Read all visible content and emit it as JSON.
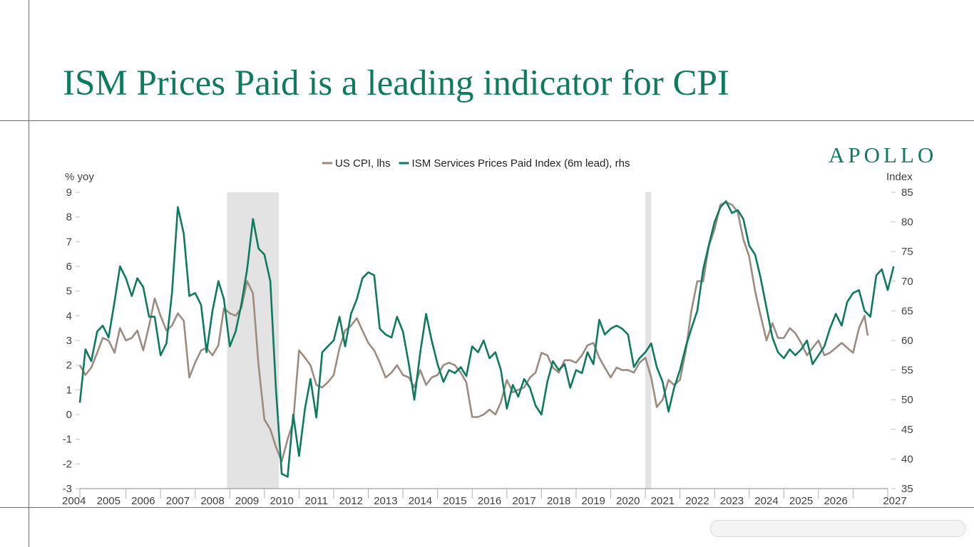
{
  "page": {
    "title": "ISM Prices Paid is a leading indicator for CPI",
    "brand": "APOLLO"
  },
  "colors": {
    "cpi": "#9c8c80",
    "ism": "#0e7a5f",
    "recession": "#e2e3e2",
    "title": "#0e7a5f"
  },
  "chart_data": {
    "type": "line",
    "title": "",
    "legend_position": "top-center",
    "xlim": [
      2003.67,
      2027
    ],
    "x_ticks": [
      "2004",
      "2005",
      "2006",
      "2007",
      "2008",
      "2009",
      "2010",
      "2011",
      "2012",
      "2013",
      "2014",
      "2015",
      "2016",
      "2017",
      "2018",
      "2019",
      "2020",
      "2021",
      "2022",
      "2023",
      "2024",
      "2025",
      "2026",
      "2027"
    ],
    "y_left": {
      "label": "% yoy",
      "lim": [
        -3,
        9
      ],
      "ticks": [
        "9",
        "8",
        "7",
        "6",
        "5",
        "4",
        "3",
        "2",
        "1",
        "0",
        "-1",
        "-2",
        "-3"
      ]
    },
    "y_right": {
      "label": "Index",
      "lim": [
        35,
        85
      ],
      "ticks": [
        "85",
        "80",
        "75",
        "70",
        "65",
        "60",
        "55",
        "50",
        "45",
        "40",
        "35"
      ]
    },
    "recessions": [
      [
        2007.92,
        2009.42
      ],
      [
        2020.0,
        2020.17
      ]
    ],
    "series": [
      {
        "name": "US CPI, lhs",
        "axis": "left",
        "points": [
          [
            2003.67,
            2.0
          ],
          [
            2003.83,
            1.6
          ],
          [
            2004.0,
            1.9
          ],
          [
            2004.17,
            2.5
          ],
          [
            2004.33,
            3.1
          ],
          [
            2004.5,
            3.0
          ],
          [
            2004.67,
            2.5
          ],
          [
            2004.83,
            3.5
          ],
          [
            2005.0,
            3.0
          ],
          [
            2005.17,
            3.1
          ],
          [
            2005.33,
            3.4
          ],
          [
            2005.5,
            2.6
          ],
          [
            2005.67,
            3.6
          ],
          [
            2005.83,
            4.7
          ],
          [
            2006.0,
            4.0
          ],
          [
            2006.17,
            3.4
          ],
          [
            2006.33,
            3.6
          ],
          [
            2006.5,
            4.1
          ],
          [
            2006.67,
            3.8
          ],
          [
            2006.83,
            1.5
          ],
          [
            2007.0,
            2.1
          ],
          [
            2007.17,
            2.6
          ],
          [
            2007.33,
            2.7
          ],
          [
            2007.5,
            2.4
          ],
          [
            2007.67,
            2.8
          ],
          [
            2007.83,
            4.3
          ],
          [
            2008.0,
            4.1
          ],
          [
            2008.17,
            4.0
          ],
          [
            2008.33,
            4.3
          ],
          [
            2008.5,
            5.4
          ],
          [
            2008.67,
            4.9
          ],
          [
            2008.83,
            2.0
          ],
          [
            2009.0,
            -0.2
          ],
          [
            2009.17,
            -0.6
          ],
          [
            2009.33,
            -1.3
          ],
          [
            2009.5,
            -1.9
          ],
          [
            2009.67,
            -1.0
          ],
          [
            2009.83,
            -0.3
          ],
          [
            2010.0,
            2.6
          ],
          [
            2010.17,
            2.3
          ],
          [
            2010.33,
            2.0
          ],
          [
            2010.5,
            1.2
          ],
          [
            2010.67,
            1.1
          ],
          [
            2010.83,
            1.3
          ],
          [
            2011.0,
            1.6
          ],
          [
            2011.17,
            2.7
          ],
          [
            2011.33,
            3.4
          ],
          [
            2011.5,
            3.6
          ],
          [
            2011.67,
            3.9
          ],
          [
            2011.83,
            3.4
          ],
          [
            2012.0,
            2.9
          ],
          [
            2012.17,
            2.6
          ],
          [
            2012.33,
            2.1
          ],
          [
            2012.5,
            1.5
          ],
          [
            2012.67,
            1.7
          ],
          [
            2012.83,
            2.0
          ],
          [
            2013.0,
            1.6
          ],
          [
            2013.17,
            1.5
          ],
          [
            2013.33,
            1.1
          ],
          [
            2013.5,
            1.8
          ],
          [
            2013.67,
            1.2
          ],
          [
            2013.83,
            1.5
          ],
          [
            2014.0,
            1.6
          ],
          [
            2014.17,
            2.0
          ],
          [
            2014.33,
            2.1
          ],
          [
            2014.5,
            2.0
          ],
          [
            2014.67,
            1.7
          ],
          [
            2014.83,
            1.3
          ],
          [
            2015.0,
            -0.1
          ],
          [
            2015.17,
            -0.1
          ],
          [
            2015.33,
            0.0
          ],
          [
            2015.5,
            0.2
          ],
          [
            2015.67,
            0.0
          ],
          [
            2015.83,
            0.5
          ],
          [
            2016.0,
            1.4
          ],
          [
            2016.17,
            0.9
          ],
          [
            2016.33,
            1.0
          ],
          [
            2016.5,
            1.1
          ],
          [
            2016.67,
            1.5
          ],
          [
            2016.83,
            1.7
          ],
          [
            2017.0,
            2.5
          ],
          [
            2017.17,
            2.4
          ],
          [
            2017.33,
            1.9
          ],
          [
            2017.5,
            1.7
          ],
          [
            2017.67,
            2.2
          ],
          [
            2017.83,
            2.2
          ],
          [
            2018.0,
            2.1
          ],
          [
            2018.17,
            2.4
          ],
          [
            2018.33,
            2.8
          ],
          [
            2018.5,
            2.9
          ],
          [
            2018.67,
            2.3
          ],
          [
            2018.83,
            1.9
          ],
          [
            2019.0,
            1.5
          ],
          [
            2019.17,
            1.9
          ],
          [
            2019.33,
            1.8
          ],
          [
            2019.5,
            1.8
          ],
          [
            2019.67,
            1.7
          ],
          [
            2019.83,
            2.1
          ],
          [
            2020.0,
            2.3
          ],
          [
            2020.17,
            1.5
          ],
          [
            2020.33,
            0.3
          ],
          [
            2020.5,
            0.6
          ],
          [
            2020.67,
            1.4
          ],
          [
            2020.83,
            1.2
          ],
          [
            2021.0,
            1.4
          ],
          [
            2021.17,
            2.6
          ],
          [
            2021.33,
            4.2
          ],
          [
            2021.5,
            5.4
          ],
          [
            2021.67,
            5.4
          ],
          [
            2021.83,
            6.8
          ],
          [
            2022.0,
            7.5
          ],
          [
            2022.17,
            8.5
          ],
          [
            2022.33,
            8.6
          ],
          [
            2022.5,
            8.5
          ],
          [
            2022.67,
            8.2
          ],
          [
            2022.83,
            7.1
          ],
          [
            2023.0,
            6.4
          ],
          [
            2023.17,
            5.0
          ],
          [
            2023.33,
            4.0
          ],
          [
            2023.5,
            3.0
          ],
          [
            2023.67,
            3.7
          ],
          [
            2023.83,
            3.1
          ],
          [
            2024.0,
            3.1
          ],
          [
            2024.17,
            3.5
          ],
          [
            2024.33,
            3.3
          ],
          [
            2024.5,
            2.9
          ],
          [
            2024.67,
            2.4
          ],
          [
            2024.83,
            2.7
          ],
          [
            2025.0,
            3.0
          ],
          [
            2025.17,
            2.4
          ],
          [
            2025.33,
            2.5
          ],
          [
            2025.5,
            2.7
          ],
          [
            2025.67,
            2.9
          ],
          [
            2025.83,
            2.7
          ],
          [
            2026.0,
            2.5
          ],
          [
            2026.17,
            3.5
          ],
          [
            2026.33,
            4.0
          ],
          [
            2026.42,
            3.2
          ]
        ]
      },
      {
        "name": "ISM Services Prices Paid Index (6m lead), rhs",
        "axis": "right",
        "points": [
          [
            2003.67,
            49.5
          ],
          [
            2003.83,
            58.5
          ],
          [
            2004.0,
            56.5
          ],
          [
            2004.17,
            61.5
          ],
          [
            2004.33,
            62.5
          ],
          [
            2004.5,
            60.5
          ],
          [
            2004.67,
            66.5
          ],
          [
            2004.83,
            72.5
          ],
          [
            2005.0,
            70.5
          ],
          [
            2005.17,
            67.5
          ],
          [
            2005.33,
            70.5
          ],
          [
            2005.5,
            69.0
          ],
          [
            2005.67,
            64.0
          ],
          [
            2005.83,
            64.0
          ],
          [
            2006.0,
            57.5
          ],
          [
            2006.17,
            59.5
          ],
          [
            2006.33,
            68.0
          ],
          [
            2006.5,
            82.5
          ],
          [
            2006.67,
            78.0
          ],
          [
            2006.83,
            67.5
          ],
          [
            2007.0,
            68.0
          ],
          [
            2007.17,
            66.0
          ],
          [
            2007.33,
            58.0
          ],
          [
            2007.5,
            65.0
          ],
          [
            2007.67,
            70.0
          ],
          [
            2007.83,
            67.0
          ],
          [
            2008.0,
            59.0
          ],
          [
            2008.17,
            61.5
          ],
          [
            2008.33,
            66.0
          ],
          [
            2008.5,
            72.0
          ],
          [
            2008.67,
            80.5
          ],
          [
            2008.83,
            75.5
          ],
          [
            2009.0,
            74.5
          ],
          [
            2009.17,
            70.0
          ],
          [
            2009.33,
            52.0
          ],
          [
            2009.5,
            37.5
          ],
          [
            2009.67,
            37.0
          ],
          [
            2009.83,
            47.5
          ],
          [
            2010.0,
            40.5
          ],
          [
            2010.17,
            48.5
          ],
          [
            2010.33,
            53.5
          ],
          [
            2010.5,
            47.0
          ],
          [
            2010.67,
            58.0
          ],
          [
            2010.83,
            59.0
          ],
          [
            2011.0,
            60.0
          ],
          [
            2011.17,
            64.0
          ],
          [
            2011.33,
            59.0
          ],
          [
            2011.5,
            64.5
          ],
          [
            2011.67,
            67.0
          ],
          [
            2011.83,
            70.5
          ],
          [
            2012.0,
            71.5
          ],
          [
            2012.17,
            71.0
          ],
          [
            2012.33,
            62.0
          ],
          [
            2012.5,
            61.0
          ],
          [
            2012.67,
            60.5
          ],
          [
            2012.83,
            64.0
          ],
          [
            2013.0,
            61.5
          ],
          [
            2013.17,
            56.0
          ],
          [
            2013.33,
            50.0
          ],
          [
            2013.5,
            58.0
          ],
          [
            2013.67,
            64.5
          ],
          [
            2013.83,
            60.0
          ],
          [
            2014.0,
            56.0
          ],
          [
            2014.17,
            53.0
          ],
          [
            2014.33,
            55.0
          ],
          [
            2014.5,
            54.5
          ],
          [
            2014.67,
            55.5
          ],
          [
            2014.83,
            54.0
          ],
          [
            2015.0,
            59.0
          ],
          [
            2015.17,
            58.0
          ],
          [
            2015.33,
            60.0
          ],
          [
            2015.5,
            57.0
          ],
          [
            2015.67,
            58.0
          ],
          [
            2015.83,
            55.0
          ],
          [
            2016.0,
            48.5
          ],
          [
            2016.17,
            52.5
          ],
          [
            2016.33,
            50.5
          ],
          [
            2016.5,
            53.5
          ],
          [
            2016.67,
            52.0
          ],
          [
            2016.83,
            49.0
          ],
          [
            2017.0,
            47.5
          ],
          [
            2017.17,
            53.0
          ],
          [
            2017.33,
            56.5
          ],
          [
            2017.5,
            55.0
          ],
          [
            2017.67,
            56.0
          ],
          [
            2017.83,
            52.0
          ],
          [
            2018.0,
            55.0
          ],
          [
            2018.17,
            54.5
          ],
          [
            2018.33,
            58.0
          ],
          [
            2018.5,
            56.0
          ],
          [
            2018.67,
            63.5
          ],
          [
            2018.83,
            61.0
          ],
          [
            2019.0,
            62.0
          ],
          [
            2019.17,
            62.5
          ],
          [
            2019.33,
            62.0
          ],
          [
            2019.5,
            61.0
          ],
          [
            2019.67,
            55.5
          ],
          [
            2019.83,
            57.0
          ],
          [
            2020.0,
            58.0
          ],
          [
            2020.17,
            59.5
          ],
          [
            2020.33,
            55.5
          ],
          [
            2020.5,
            53.0
          ],
          [
            2020.67,
            48.0
          ],
          [
            2020.83,
            52.0
          ],
          [
            2021.0,
            55.0
          ],
          [
            2021.17,
            59.0
          ],
          [
            2021.33,
            62.0
          ],
          [
            2021.5,
            65.0
          ],
          [
            2021.67,
            72.0
          ],
          [
            2021.83,
            76.0
          ],
          [
            2022.0,
            80.0
          ],
          [
            2022.17,
            82.5
          ],
          [
            2022.33,
            83.5
          ],
          [
            2022.5,
            81.5
          ],
          [
            2022.67,
            82.0
          ],
          [
            2022.83,
            80.5
          ],
          [
            2023.0,
            76.0
          ],
          [
            2023.17,
            74.5
          ],
          [
            2023.33,
            70.5
          ],
          [
            2023.5,
            65.5
          ],
          [
            2023.67,
            60.5
          ],
          [
            2023.83,
            58.0
          ],
          [
            2024.0,
            57.0
          ],
          [
            2024.17,
            58.5
          ],
          [
            2024.33,
            57.5
          ],
          [
            2024.5,
            58.5
          ],
          [
            2024.67,
            60.0
          ],
          [
            2024.83,
            56.0
          ],
          [
            2025.0,
            57.5
          ],
          [
            2025.17,
            59.0
          ],
          [
            2025.33,
            62.0
          ],
          [
            2025.5,
            64.5
          ],
          [
            2025.67,
            62.5
          ],
          [
            2025.83,
            66.5
          ],
          [
            2026.0,
            68.0
          ],
          [
            2026.17,
            68.5
          ],
          [
            2026.33,
            65.0
          ],
          [
            2026.5,
            64.0
          ],
          [
            2026.67,
            71.0
          ],
          [
            2026.83,
            72.0
          ],
          [
            2027.0,
            68.5
          ],
          [
            2027.17,
            72.5
          ]
        ]
      }
    ]
  }
}
